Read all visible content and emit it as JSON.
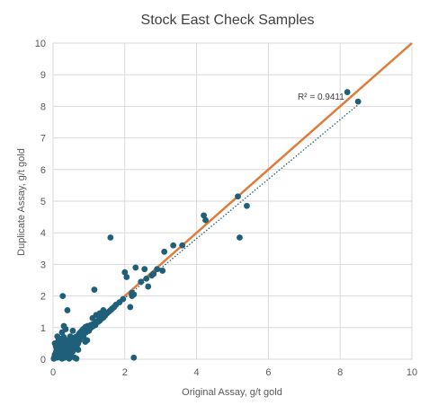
{
  "chart_data": {
    "type": "scatter",
    "title": "Stock East Check Samples",
    "xlabel": "Original Assay, g/t gold",
    "ylabel": "Duplicate Assay, g/t gold",
    "xlim": [
      0,
      10
    ],
    "ylim": [
      0,
      10
    ],
    "xticks": [
      "0",
      "2",
      "4",
      "6",
      "8",
      "10"
    ],
    "yticks": [
      "0",
      "1",
      "2",
      "3",
      "4",
      "5",
      "6",
      "7",
      "8",
      "9",
      "10"
    ],
    "grid": true,
    "legend": "none",
    "colors": {
      "points": "#1f5f7a",
      "line_1to1": "#e07b39",
      "trendline": "#1f5f7a"
    },
    "series": [
      {
        "name": "",
        "points": [
          [
            0.02,
            0.02
          ],
          [
            0.04,
            0.08
          ],
          [
            0.05,
            0.15
          ],
          [
            0.06,
            0.05
          ],
          [
            0.08,
            0.22
          ],
          [
            0.1,
            0.12
          ],
          [
            0.1,
            0.3
          ],
          [
            0.12,
            0.05
          ],
          [
            0.12,
            0.45
          ],
          [
            0.14,
            0.18
          ],
          [
            0.15,
            0.6
          ],
          [
            0.16,
            0.08
          ],
          [
            0.18,
            0.32
          ],
          [
            0.2,
            0.1
          ],
          [
            0.2,
            0.5
          ],
          [
            0.22,
            0.2
          ],
          [
            0.24,
            0.38
          ],
          [
            0.25,
            0.02
          ],
          [
            0.26,
            0.12
          ],
          [
            0.28,
            0.55
          ],
          [
            0.3,
            0.25
          ],
          [
            0.3,
            0.7
          ],
          [
            0.32,
            0.05
          ],
          [
            0.34,
            0.42
          ],
          [
            0.35,
            0.15
          ],
          [
            0.36,
            0.3
          ],
          [
            0.38,
            0.6
          ],
          [
            0.4,
            0.2
          ],
          [
            0.4,
            0.45
          ],
          [
            0.42,
            0.1
          ],
          [
            0.44,
            0.35
          ],
          [
            0.45,
            0.55
          ],
          [
            0.46,
            0.25
          ],
          [
            0.48,
            0.4
          ],
          [
            0.5,
            0.5
          ],
          [
            0.5,
            0.15
          ],
          [
            0.52,
            0.65
          ],
          [
            0.54,
            0.3
          ],
          [
            0.55,
            0.45
          ],
          [
            0.56,
            0.58
          ],
          [
            0.58,
            0.35
          ],
          [
            0.6,
            0.6
          ],
          [
            0.6,
            0.48
          ],
          [
            0.62,
            0.7
          ],
          [
            0.64,
            0.55
          ],
          [
            0.65,
            0.62
          ],
          [
            0.66,
            0.4
          ],
          [
            0.68,
            0.72
          ],
          [
            0.7,
            0.65
          ],
          [
            0.72,
            0.8
          ],
          [
            0.74,
            0.6
          ],
          [
            0.75,
            0.75
          ],
          [
            0.76,
            0.85
          ],
          [
            0.78,
            0.7
          ],
          [
            0.8,
            0.82
          ],
          [
            0.8,
            0.9
          ],
          [
            0.82,
            0.75
          ],
          [
            0.84,
            0.95
          ],
          [
            0.85,
            0.88
          ],
          [
            0.86,
            0.8
          ],
          [
            0.88,
            0.95
          ],
          [
            0.9,
            0.9
          ],
          [
            0.9,
            1.02
          ],
          [
            0.92,
            0.85
          ],
          [
            0.94,
            1.0
          ],
          [
            0.95,
            0.95
          ],
          [
            0.96,
            1.05
          ],
          [
            0.98,
            0.92
          ],
          [
            1.0,
            1.0
          ],
          [
            1.02,
            1.05
          ],
          [
            1.04,
            0.98
          ],
          [
            1.05,
            1.08
          ],
          [
            1.08,
            1.02
          ],
          [
            1.1,
            1.1
          ],
          [
            1.12,
            1.05
          ],
          [
            1.15,
            1.12
          ],
          [
            1.18,
            1.08
          ],
          [
            1.2,
            1.15
          ],
          [
            1.22,
            1.2
          ],
          [
            1.25,
            1.18
          ],
          [
            1.28,
            1.25
          ],
          [
            1.3,
            1.22
          ],
          [
            1.32,
            1.3
          ],
          [
            1.35,
            1.28
          ],
          [
            1.38,
            1.35
          ],
          [
            1.4,
            1.32
          ],
          [
            1.42,
            1.4
          ],
          [
            1.45,
            1.38
          ],
          [
            1.5,
            1.45
          ],
          [
            1.55,
            1.5
          ],
          [
            1.6,
            1.55
          ],
          [
            1.65,
            1.6
          ],
          [
            1.7,
            1.65
          ],
          [
            1.75,
            1.72
          ],
          [
            1.2,
            1.4
          ],
          [
            1.1,
            1.3
          ],
          [
            0.9,
            0.55
          ],
          [
            0.95,
            0.6
          ],
          [
            0.7,
            0.3
          ],
          [
            0.6,
            0.05
          ],
          [
            0.65,
            0.02
          ],
          [
            0.3,
            1.05
          ],
          [
            0.4,
            1.55
          ],
          [
            0.27,
            2.0
          ],
          [
            0.12,
            0.72
          ],
          [
            0.05,
            0.5
          ],
          [
            0.35,
            0.95
          ],
          [
            0.55,
            0.9
          ],
          [
            0.25,
            0.85
          ],
          [
            0.48,
            0.72
          ],
          [
            1.15,
            2.2
          ],
          [
            1.6,
            3.85
          ],
          [
            2.0,
            2.75
          ],
          [
            2.05,
            2.6
          ],
          [
            2.2,
            2.0
          ],
          [
            2.2,
            2.1
          ],
          [
            2.25,
            2.05
          ],
          [
            2.3,
            2.9
          ],
          [
            2.45,
            2.45
          ],
          [
            2.55,
            2.85
          ],
          [
            2.6,
            2.55
          ],
          [
            2.65,
            2.3
          ],
          [
            2.75,
            2.65
          ],
          [
            2.8,
            2.7
          ],
          [
            2.9,
            2.85
          ],
          [
            3.05,
            2.8
          ],
          [
            3.1,
            3.4
          ],
          [
            3.35,
            3.6
          ],
          [
            3.6,
            3.6
          ],
          [
            4.2,
            4.55
          ],
          [
            4.25,
            4.4
          ],
          [
            5.15,
            5.15
          ],
          [
            5.2,
            3.85
          ],
          [
            5.4,
            4.85
          ],
          [
            2.15,
            1.65
          ],
          [
            2.25,
            0.05
          ],
          [
            8.2,
            8.45
          ],
          [
            8.5,
            8.15
          ],
          [
            1.85,
            1.8
          ],
          [
            1.95,
            1.9
          ],
          [
            1.4,
            1.55
          ],
          [
            1.3,
            1.45
          ],
          [
            0.15,
            0.35
          ],
          [
            0.45,
            0.02
          ],
          [
            0.7,
            0.5
          ],
          [
            0.85,
            0.7
          ],
          [
            1.0,
            0.9
          ],
          [
            0.2,
            0.65
          ],
          [
            0.08,
            0.4
          ],
          [
            0.55,
            0.25
          ]
        ]
      }
    ],
    "line_1to1": [
      [
        0,
        0
      ],
      [
        10,
        10
      ]
    ],
    "trendline": {
      "type": "linear",
      "style": "dotted",
      "start": [
        1.7,
        1.65
      ],
      "end": [
        8.5,
        8.05
      ],
      "label": "R² = 0.9411"
    }
  }
}
